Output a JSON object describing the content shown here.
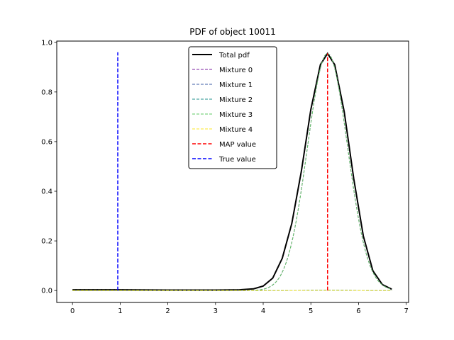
{
  "chart_data": {
    "type": "line",
    "title": "PDF of object 10011",
    "xlabel": "",
    "ylabel": "",
    "xlim": [
      -0.33,
      7.05
    ],
    "ylim": [
      -0.048,
      1.005
    ],
    "xticks": [
      0,
      1,
      2,
      3,
      4,
      5,
      6,
      7
    ],
    "yticks": [
      0.0,
      0.2,
      0.4,
      0.6,
      0.8,
      1.0
    ],
    "xtick_labels": [
      "0",
      "1",
      "2",
      "3",
      "4",
      "5",
      "6",
      "7"
    ],
    "ytick_labels": [
      "0.0",
      "0.2",
      "0.4",
      "0.6",
      "0.8",
      "1.0"
    ],
    "grid": false,
    "legend_position": "top-center",
    "x_range": [
      0,
      6.7
    ],
    "total_pdf": {
      "name": "Total pdf",
      "color": "#000000",
      "style": "solid",
      "x": [
        0,
        1,
        2,
        3,
        3.5,
        3.8,
        4.0,
        4.2,
        4.4,
        4.6,
        4.8,
        5.0,
        5.2,
        5.35,
        5.5,
        5.7,
        5.9,
        6.1,
        6.3,
        6.5,
        6.7
      ],
      "y": [
        0.003,
        0.003,
        0.002,
        0.002,
        0.003,
        0.007,
        0.018,
        0.05,
        0.13,
        0.27,
        0.48,
        0.73,
        0.91,
        0.955,
        0.91,
        0.72,
        0.45,
        0.22,
        0.08,
        0.024,
        0.005
      ]
    },
    "series": [
      {
        "name": "Mixture 0",
        "color": "#7b1fa2",
        "style": "dashed",
        "peak": 0.955,
        "mean": 5.35,
        "sigma": 0.42
      },
      {
        "name": "Mixture 1",
        "color": "#3b5ba5",
        "style": "dashed",
        "peak": 0.002,
        "mean": 5.35,
        "sigma": 0.42
      },
      {
        "name": "Mixture 2",
        "color": "#21918c",
        "style": "dashed",
        "peak": 0.002,
        "mean": 5.35,
        "sigma": 0.42
      },
      {
        "name": "Mixture 3",
        "color": "#5ec962",
        "style": "dashed",
        "peak": 0.955,
        "mean": 5.35,
        "sigma": 0.42
      },
      {
        "name": "Mixture 4",
        "color": "#fde725",
        "style": "dashed",
        "peak": 0.001,
        "mean": 5.35,
        "sigma": 0.42
      }
    ],
    "vlines": [
      {
        "name": "MAP value",
        "color": "#ff0000",
        "x": 5.35,
        "ymin": 0.0,
        "ymax": 0.955
      },
      {
        "name": "True value",
        "color": "#0000ff",
        "x": 0.95,
        "ymin": 0.0,
        "ymax": 0.96
      }
    ],
    "legend": [
      "Total pdf",
      "Mixture 0",
      "Mixture 1",
      "Mixture 2",
      "Mixture 3",
      "Mixture 4",
      "MAP value",
      "True value"
    ]
  }
}
